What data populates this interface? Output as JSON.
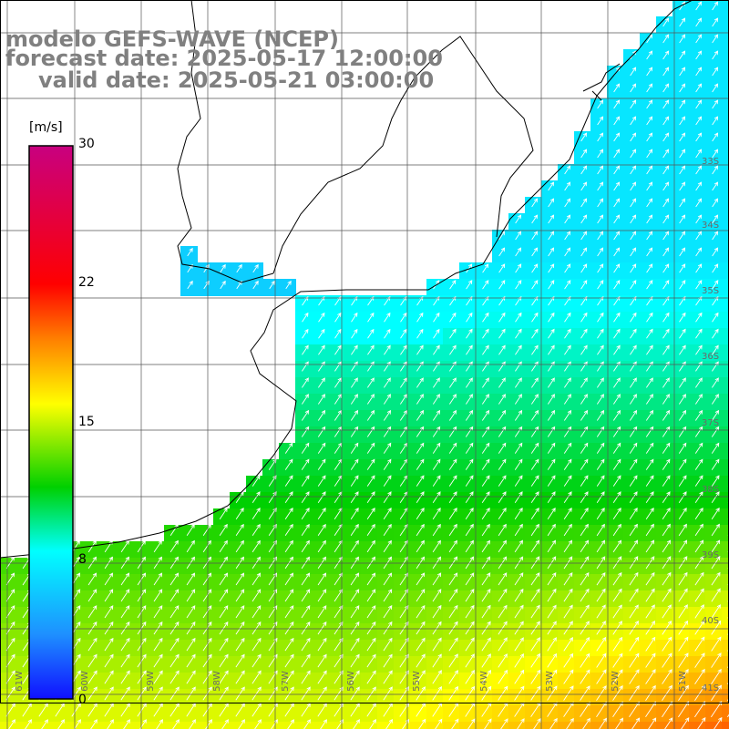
{
  "title": {
    "model": "modelo GEFS-WAVE (NCEP)",
    "forecast": "forecast date: 2025-05-17 12:00:00",
    "valid": "valid date: 2025-05-21 03:00:00"
  },
  "colorbar": {
    "unit": "[m/s]",
    "ticks": [
      "30",
      "22",
      "15",
      "8",
      "0"
    ],
    "tick_values": [
      30,
      22,
      15,
      8,
      0
    ],
    "range": [
      0,
      30
    ],
    "colors": [
      "#1010ff",
      "#1e90ff",
      "#00ffff",
      "#00d000",
      "#ffff00",
      "#ff8000",
      "#ff0000",
      "#c80080"
    ]
  },
  "grid": {
    "lat_labels": [
      "33S",
      "34S",
      "35S",
      "36S",
      "37S",
      "38S",
      "39S",
      "40S",
      "41S"
    ],
    "lon_labels": [
      "61W",
      "60W",
      "59W",
      "58W",
      "57W",
      "56W",
      "55W",
      "54W",
      "53W",
      "52W",
      "51W"
    ]
  },
  "field": {
    "variable": "wind speed",
    "units": "m/s",
    "lon_range": [
      -61.0,
      -50.3
    ],
    "lat_range": [
      -41.0,
      -30.6
    ],
    "typical_values": {
      "river_plate": 6,
      "coastal_shelf": 8,
      "offshore_north": 7,
      "south": 13,
      "southeast_max": 16
    },
    "arrow_direction": "towards northeast"
  }
}
